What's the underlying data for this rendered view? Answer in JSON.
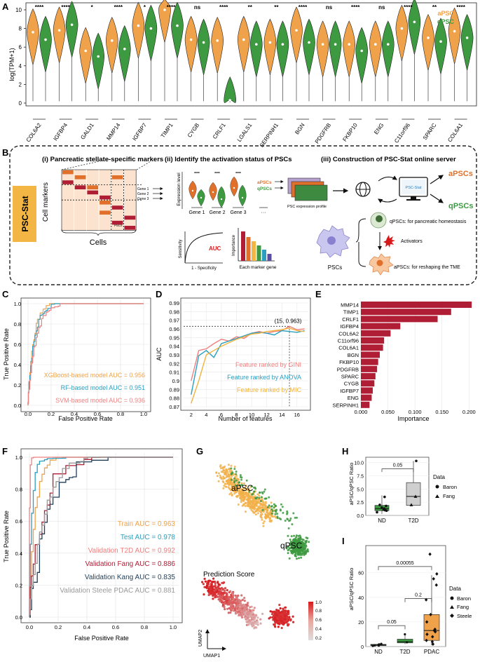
{
  "panels": {
    "A": "A",
    "B": "B",
    "C": "C",
    "D": "D",
    "E": "E",
    "F": "F",
    "G": "G",
    "H": "H",
    "I": "I"
  },
  "colors": {
    "apsc": "#f0a24a",
    "qpsc": "#3e9a40",
    "crimson": "#b01e35",
    "psc_stat_box": "#f3b544"
  },
  "panelA": {
    "ylabel": "log(TPM+1)",
    "yticks": [
      0,
      2,
      4,
      6,
      8,
      10
    ],
    "legend": [
      "aPSC",
      "qPSC"
    ],
    "genes": [
      {
        "name": "COL6A2",
        "sig": "****",
        "a": 7.6,
        "q": 6.8
      },
      {
        "name": "IGFBP4",
        "sig": "****",
        "a": 7.8,
        "q": 8.4
      },
      {
        "name": "GALD1",
        "sig": "*",
        "a": 5.6,
        "q": 5.0
      },
      {
        "name": "MMP14",
        "sig": "****",
        "a": 6.7,
        "q": 5.8
      },
      {
        "name": "IGFBP7",
        "sig": "*",
        "a": 8.3,
        "q": 8.0
      },
      {
        "name": "TIMP1",
        "sig": "****",
        "a": 10.0,
        "q": 8.3
      },
      {
        "name": "CYGB",
        "sig": "ns",
        "a": 6.8,
        "q": 6.5
      },
      {
        "name": "CRLF1",
        "sig": "****",
        "a": 6.7,
        "q": 0.3
      },
      {
        "name": "LGALS1",
        "sig": "**",
        "a": 6.8,
        "q": 6.3
      },
      {
        "name": "SERPINH1",
        "sig": "**",
        "a": 6.5,
        "q": 6.3
      },
      {
        "name": "BGN",
        "sig": "****",
        "a": 7.8,
        "q": 6.5
      },
      {
        "name": "PDGFRB",
        "sig": "ns",
        "a": 6.3,
        "q": 6.3
      },
      {
        "name": "FKBP10",
        "sig": "****",
        "a": 6.3,
        "q": 5.6
      },
      {
        "name": "ENG",
        "sig": "ns",
        "a": 6.3,
        "q": 6.3
      },
      {
        "name": "C11orf96",
        "sig": "****",
        "a": 8.0,
        "q": 8.7
      },
      {
        "name": "SPARC",
        "sig": "**",
        "a": 7.0,
        "q": 6.6
      },
      {
        "name": "COL6A1",
        "sig": "****",
        "a": 7.7,
        "q": 7.0
      }
    ]
  },
  "panelB": {
    "psc_stat": "PSC-Stat",
    "sec1": "(i) Pancreatic stellate-specific markers",
    "sec2": "(ii) Identify the activation status of PSCs",
    "sec3": "(iii) Construction of PSC-Stat online server",
    "cell_markers": "Cell markers",
    "cells": "Cells",
    "pscs_small": "PSCs",
    "gene1": "Gene 1",
    "gene2": "Gene 2",
    "gene3": "Gene 3",
    "expr_level": "Expression level",
    "gene1b": "Gene 1",
    "gene2b": "Gene 2",
    "gene3b": "Gene 3",
    "dots": "···",
    "apscs_small": "aPSCs",
    "qpscs_small": "qPSCs",
    "stars": "****",
    "sensitivity": "Sensitivity",
    "auc": "AUC",
    "one_minus_spec": "1 - Specificity",
    "importance": "Importance",
    "each_marker": "Each marker gene",
    "expr_profile": "PSC expression profile",
    "server": "PSC-Stat",
    "apscs_big": "aPSCs",
    "qpscs_big": "qPSCs",
    "q_desc": "qPSCs: for pancreatic homeostasis",
    "activators": "Activators",
    "a_desc": "aPSCs: for reshaping the TME",
    "pscs_cell": "PSCs"
  },
  "panelC": {
    "xlabel": "False Positive Rate",
    "ylabel": "True Positive Rate",
    "ticks": [
      "0.0",
      "0.2",
      "0.4",
      "0.6",
      "0.8",
      "1.0"
    ],
    "legend": [
      {
        "label": "XGBoost-based model AUC = 0.956",
        "color": "#f0a24a"
      },
      {
        "label": "RF-based model AUC = 0.951",
        "color": "#2b9fc0"
      },
      {
        "label": "SVM-based model AUC = 0.936",
        "color": "#f07f7f"
      }
    ]
  },
  "chart_data": [
    {
      "type": "line",
      "title": "",
      "xlabel": "Number of features",
      "ylabel": "AUC",
      "ylim": [
        0.87,
        0.99
      ],
      "xlim": [
        1,
        17.5
      ],
      "xticks": [
        2,
        4,
        6,
        8,
        10,
        12,
        14,
        16
      ],
      "yticks": [
        0.87,
        0.88,
        0.89,
        0.9,
        0.91,
        0.92,
        0.93,
        0.94,
        0.95,
        0.96,
        0.97,
        0.98,
        0.99
      ],
      "annotation": "(15, 0.963)",
      "series": [
        {
          "name": "Feature ranked by GINI",
          "color": "#f07f7f",
          "x": [
            2,
            3,
            4,
            5,
            6,
            7,
            8,
            9,
            10,
            11,
            12,
            13,
            14,
            15,
            16,
            17
          ],
          "y": [
            0.9,
            0.935,
            0.937,
            0.943,
            0.948,
            0.946,
            0.951,
            0.949,
            0.955,
            0.957,
            0.955,
            0.957,
            0.958,
            0.963,
            0.959,
            0.96
          ]
        },
        {
          "name": "Feature ranked by ANOVA",
          "color": "#2b9fc0",
          "x": [
            2,
            3,
            4,
            5,
            6,
            7,
            8,
            9,
            10,
            11,
            12,
            13,
            14,
            15,
            16,
            17
          ],
          "y": [
            0.884,
            0.929,
            0.935,
            0.927,
            0.943,
            0.946,
            0.949,
            0.952,
            0.955,
            0.956,
            0.955,
            0.953,
            0.958,
            0.957,
            0.956,
            0.958
          ]
        },
        {
          "name": "Feature ranked by MIC",
          "color": "#f2b33d",
          "x": [
            2,
            3,
            4,
            5,
            6,
            7,
            8,
            9,
            10,
            11,
            12,
            13,
            14,
            15,
            16,
            17
          ],
          "y": [
            0.874,
            0.9,
            0.93,
            0.935,
            0.94,
            0.944,
            0.948,
            0.951,
            0.954,
            0.955,
            0.957,
            0.958,
            0.959,
            0.961,
            0.958,
            0.957
          ]
        }
      ]
    },
    {
      "type": "bar",
      "title": "",
      "xlabel": "Importance",
      "ylabel": "",
      "xlim": [
        0,
        0.21
      ],
      "xticks": [
        "0.000",
        "0.050",
        "0.100",
        "0.150",
        "0.200"
      ],
      "categories": [
        "MMP14",
        "TIMP1",
        "CRLF1",
        "IGFBP4",
        "COL6A2",
        "C11orf96",
        "COL6A1",
        "BGN",
        "FKBP10",
        "PDGFRB",
        "SPARC",
        "CYGB",
        "IGFBP7",
        "ENG",
        "SERPINH1"
      ],
      "values": [
        0.205,
        0.167,
        0.142,
        0.073,
        0.055,
        0.043,
        0.041,
        0.035,
        0.032,
        0.03,
        0.027,
        0.025,
        0.022,
        0.02,
        0.016
      ]
    }
  ],
  "panelF": {
    "xlabel": "False Positive Rate",
    "ylabel": "True Positive Rate",
    "ticks": [
      "0.0",
      "0.2",
      "0.4",
      "0.6",
      "0.8",
      "1.0"
    ],
    "legend": [
      {
        "label": "Train AUC = 0.963",
        "color": "#f0a24a"
      },
      {
        "label": "Test AUC = 0.978",
        "color": "#2b9fc0"
      },
      {
        "label": "Validation T2D AUC = 0.992",
        "color": "#f07f7f"
      },
      {
        "label": "Validation Fang AUC = 0.886",
        "color": "#b01e35"
      },
      {
        "label": "Validation Kang  AUC = 0.835",
        "color": "#1f3f5a"
      },
      {
        "label": "Validation Steele PDAC  AUC = 0.881",
        "color": "#999999"
      }
    ]
  },
  "panelG": {
    "apsc": "aPSC",
    "qpsc": "qPSC",
    "pred_title": "Prediction Score",
    "umap1": "UMAP1",
    "umap2": "UMAP2",
    "scale": [
      "1.0",
      "0.8",
      "0.6",
      "0.4",
      "0.2"
    ]
  },
  "panelH": {
    "ylabel": "aPSC/qPSC Ratio",
    "yticks": [
      "0.0",
      "2.5",
      "5.0",
      "7.5",
      "10.0"
    ],
    "categories": [
      "ND",
      "T2D"
    ],
    "pval": "0.05",
    "legend_title": "Data",
    "legend": [
      "Baron",
      "Fang"
    ]
  },
  "panelI": {
    "ylabel": "aPSC/qPSC Ratio",
    "yticks": [
      "0",
      "20",
      "40",
      "60"
    ],
    "categories": [
      "ND",
      "T2D",
      "PDAC"
    ],
    "pvals": [
      "0.05",
      "0.2",
      "0.00055"
    ],
    "legend_title": "Data",
    "legend": [
      "Baron",
      "Fang",
      "Steele"
    ]
  }
}
